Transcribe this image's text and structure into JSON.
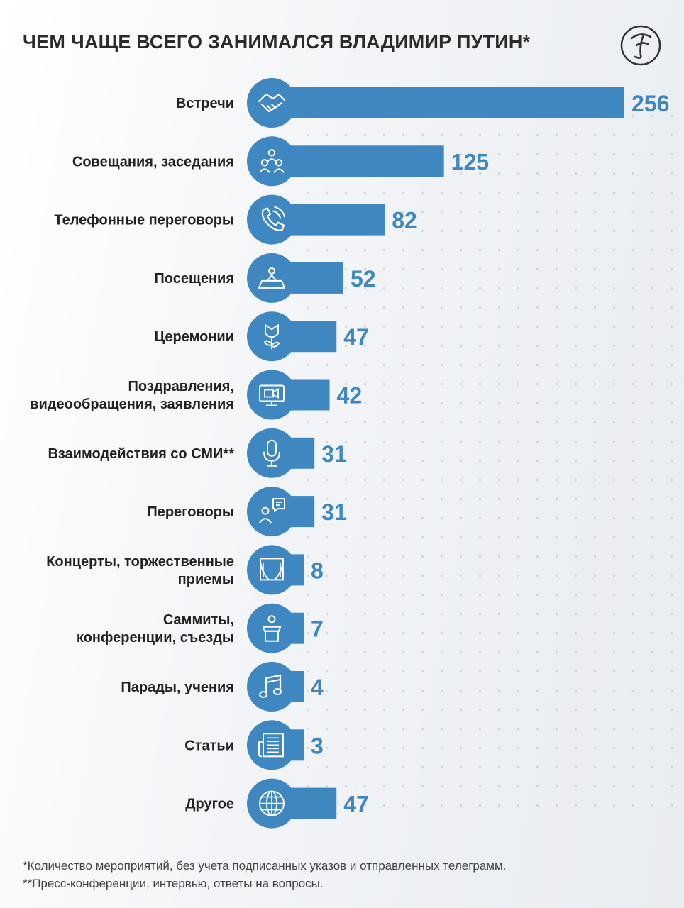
{
  "colors": {
    "bar": "#3f87c1",
    "circle": "#3f87c1",
    "value_text": "#3f87c1",
    "label_text": "#222222"
  },
  "chart_data": {
    "type": "bar",
    "orientation": "horizontal",
    "title": "ЧЕМ ЧАЩЕ ВСЕГО ЗАНИМАЛСЯ ВЛАДИМИР ПУТИН*",
    "xlabel": "",
    "ylabel": "",
    "grid": false,
    "legend": "none",
    "categories": [
      "Встречи",
      "Совещания, заседания",
      "Телефонные переговоры",
      "Посещения",
      "Церемонии",
      "Поздравления,\nвидеообращения, заявления",
      "Взаимодействия со СМИ**",
      "Переговоры",
      "Концерты, торжественные\nприемы",
      "Саммиты,\nконференции, съезды",
      "Парады, учения",
      "Статьи",
      "Другое"
    ],
    "values": [
      256,
      125,
      82,
      52,
      47,
      42,
      31,
      31,
      8,
      7,
      4,
      3,
      47
    ],
    "icons": [
      "handshake-icon",
      "meeting-people-icon",
      "phone-icon",
      "location-pin-map-icon",
      "flower-icon",
      "video-camera-screen-icon",
      "microphone-icon",
      "person-speech-bubble-icon",
      "theater-curtains-icon",
      "podium-speaker-icon",
      "music-note-icon",
      "newspaper-icon",
      "globe-icon"
    ]
  },
  "footnotes": [
    "*Количество мероприятий, без учета подписанных указов и отправленных телеграмм.",
    "**Пресс-конференции, интервью, ответы на вопросы."
  ]
}
